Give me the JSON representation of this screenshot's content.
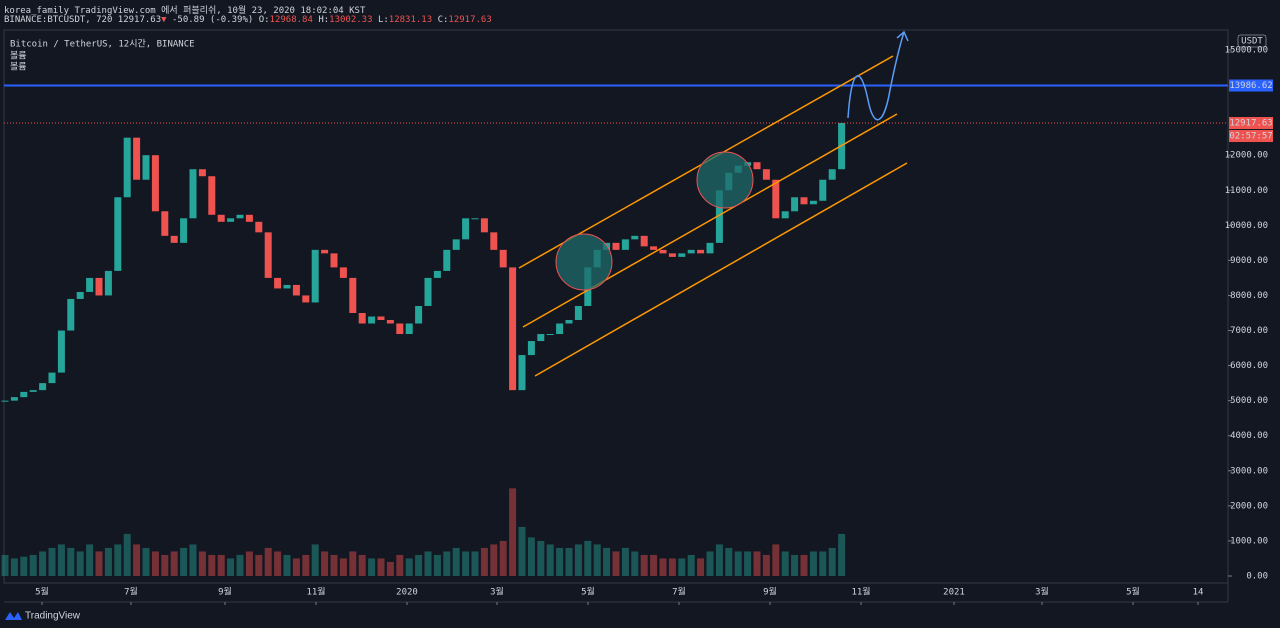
{
  "header": {
    "publisher": "korea_family TradingView.com 에서 퍼블리쉬, 10월 23, 2020 18:02:04 KST",
    "symbol": "BINANCE:BTCUSDT, 720",
    "price": "12917.63",
    "change": "-50.89 (-0.39%)",
    "o_label": "O:",
    "o": "12968.84",
    "h_label": "H:",
    "h": "13002.33",
    "l_label": "L:",
    "l": "12831.13",
    "c_label": "C:",
    "c": "12917.63"
  },
  "legend": [
    "Bitcoin / TetherUS, 12시간, BINANCE",
    "볼륨",
    "볼륨"
  ],
  "brand": "TradingView",
  "chart_data": {
    "type": "candlestick",
    "series": [
      {
        "up_color": "#26a69a",
        "down_color": "#ef5350",
        "values": [
          5000,
          5100,
          5250,
          5300,
          5500,
          5800,
          7000,
          7900,
          8100,
          8500,
          8000,
          8700,
          10800,
          12500,
          11300,
          12000,
          10400,
          9700,
          9500,
          10200,
          11600,
          11400,
          10300,
          10100,
          10200,
          10300,
          10100,
          9800,
          8500,
          8200,
          8300,
          8000,
          7800,
          9300,
          9200,
          8800,
          8500,
          7500,
          7200,
          7400,
          7300,
          7200,
          6900,
          7200,
          7700,
          8500,
          8700,
          9300,
          9600,
          10200,
          10200,
          9800,
          9300,
          8800,
          5300,
          6300,
          6700,
          6900,
          6900,
          7200,
          7300,
          7700,
          8800,
          9300,
          9500,
          9300,
          9600,
          9700,
          9400,
          9300,
          9200,
          9100,
          9200,
          9300,
          9200,
          9500,
          11000,
          11500,
          11700,
          11800,
          11600,
          11300,
          10200,
          10400,
          10800,
          10600,
          10700,
          11300,
          11600,
          12917.63
        ]
      }
    ],
    "volume": {
      "values": [
        600,
        500,
        550,
        600,
        700,
        800,
        900,
        800,
        700,
        900,
        700,
        800,
        900,
        1200,
        900,
        800,
        700,
        600,
        700,
        800,
        900,
        700,
        600,
        600,
        500,
        600,
        700,
        600,
        800,
        700,
        600,
        500,
        600,
        900,
        700,
        600,
        500,
        700,
        600,
        500,
        500,
        400,
        600,
        500,
        600,
        700,
        600,
        700,
        800,
        700,
        700,
        800,
        900,
        1000,
        2500,
        1400,
        1100,
        1000,
        900,
        800,
        800,
        900,
        1000,
        900,
        800,
        700,
        800,
        700,
        600,
        600,
        500,
        500,
        500,
        600,
        500,
        700,
        900,
        800,
        700,
        700,
        700,
        600,
        900,
        700,
        600,
        600,
        700,
        700,
        800,
        1200
      ]
    },
    "ylim": [
      -200,
      15570
    ],
    "yticks": [
      {
        "value": 0,
        "label": "0.00"
      },
      {
        "value": 1000,
        "label": "1000.00"
      },
      {
        "value": 2000,
        "label": "2000.00"
      },
      {
        "value": 3000,
        "label": "3000.00"
      },
      {
        "value": 4000,
        "label": "4000.00"
      },
      {
        "value": 5000,
        "label": "5000.00"
      },
      {
        "value": 6000,
        "label": "6000.00"
      },
      {
        "value": 7000,
        "label": "7000.00"
      },
      {
        "value": 8000,
        "label": "8000.00"
      },
      {
        "value": 9000,
        "label": "9000.00"
      },
      {
        "value": 10000,
        "label": "10000.00"
      },
      {
        "value": 11000,
        "label": "11000.00"
      },
      {
        "value": 12000,
        "label": "12000.00"
      },
      {
        "value": 15000,
        "label": "15000.00"
      }
    ],
    "xtick_labels": [
      "5월",
      "7월",
      "9월",
      "11월",
      "2020",
      "3월",
      "5월",
      "7월",
      "9월",
      "11월",
      "2021",
      "3월",
      "5월",
      "14"
    ],
    "y_unit": "USDT",
    "levels": [
      {
        "value": 13986.62,
        "label": "13986.62",
        "color": "#2962ff"
      },
      {
        "value": 12917.63,
        "label": "12917.63",
        "color": "#ef5350"
      }
    ],
    "countdown": "02:57:57",
    "grid": false
  }
}
